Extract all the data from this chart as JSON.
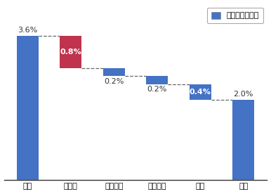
{
  "categories": [
    "现状",
    "洁净度",
    "操作手法",
    "灯光照明",
    "来料",
    "目标"
  ],
  "values": [
    3.6,
    -0.8,
    -0.2,
    -0.2,
    -0.4,
    2.0
  ],
  "labels": [
    "3.6%",
    "0.8%",
    "0.2%",
    "0.2%",
    "0.4%",
    "2.0%"
  ],
  "bar_colors": [
    "#4472C4",
    "#C0334D",
    "#4472C4",
    "#4472C4",
    "#4472C4",
    "#4472C4"
  ],
  "legend_label": "制程物料耗损率",
  "legend_color": "#4472C4",
  "background_color": "#FFFFFF",
  "bar_width": 0.5,
  "ylim": [
    0,
    4.4
  ],
  "dashed_color": "#666666",
  "label_color_default": "#333333",
  "label_color_white": "#FFFFFF",
  "label_fontsize": 8,
  "tick_fontsize": 8,
  "figsize": [
    3.86,
    2.76
  ],
  "dpi": 100
}
